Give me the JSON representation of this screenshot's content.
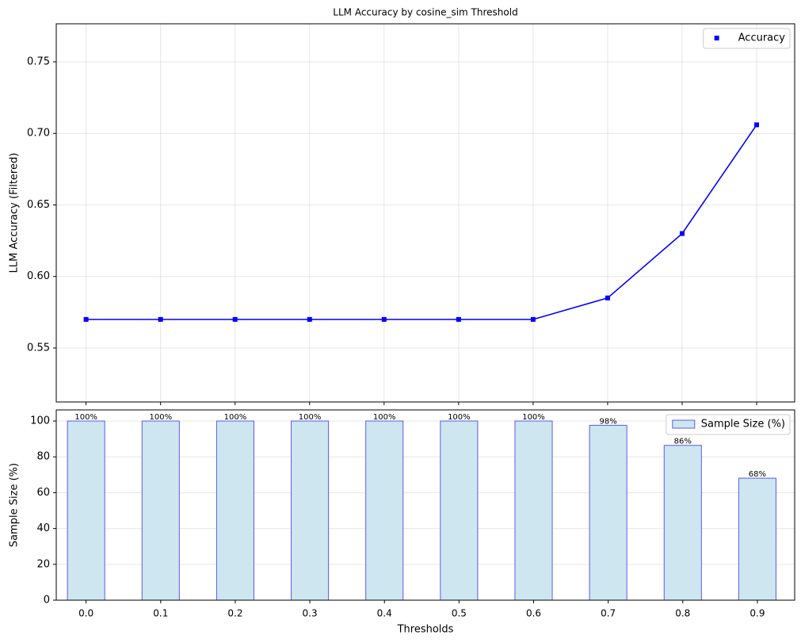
{
  "chart_data": [
    {
      "type": "line",
      "title": "LLM Accuracy by cosine_sim Threshold",
      "y_label": "LLM Accuracy (Filtered)",
      "x": [
        0,
        0.1,
        0.2,
        0.3,
        0.4,
        0.5,
        0.6,
        0.7,
        0.8,
        0.9
      ],
      "xlim": [
        -0.04,
        0.951
      ],
      "series": [
        {
          "name": "Accuracy",
          "color": "#0000ff",
          "values": [
            0.57,
            0.57,
            0.57,
            0.57,
            0.57,
            0.57,
            0.57,
            0.585,
            0.63,
            0.706
          ]
        }
      ],
      "ylim": [
        0.5123,
        0.7766
      ],
      "yticks": [
        0.55,
        {
          "value": 0.6,
          "label": "0.60"
        },
        0.65,
        {
          "value": 0.7,
          "label": "0.70"
        },
        0.75
      ],
      "grid": "both",
      "legend": "upper right"
    },
    {
      "type": "bar",
      "x_label": "Thresholds",
      "y_label": "Sample Size (%)",
      "categories": [
        "0.0",
        "0.1",
        "0.2",
        "0.3",
        "0.4",
        "0.5",
        "0.6",
        "0.7",
        "0.8",
        "0.9"
      ],
      "series": [
        {
          "name": "Sample Size (%)",
          "color": "#cde6f0",
          "edgecolor": "#5b5bf0",
          "values": [
            100,
            100,
            100,
            100,
            100,
            100,
            100,
            97.6,
            86.4,
            68.1
          ],
          "value_labels": [
            "100%",
            "100%",
            "100%",
            "100%",
            "100%",
            "100%",
            "100%",
            "98%",
            "86%",
            "68%"
          ]
        }
      ],
      "ylim": [
        0,
        106.2
      ],
      "yticks": [
        0,
        20,
        40,
        60,
        80,
        100
      ],
      "grid": "y",
      "legend": "upper right"
    }
  ]
}
